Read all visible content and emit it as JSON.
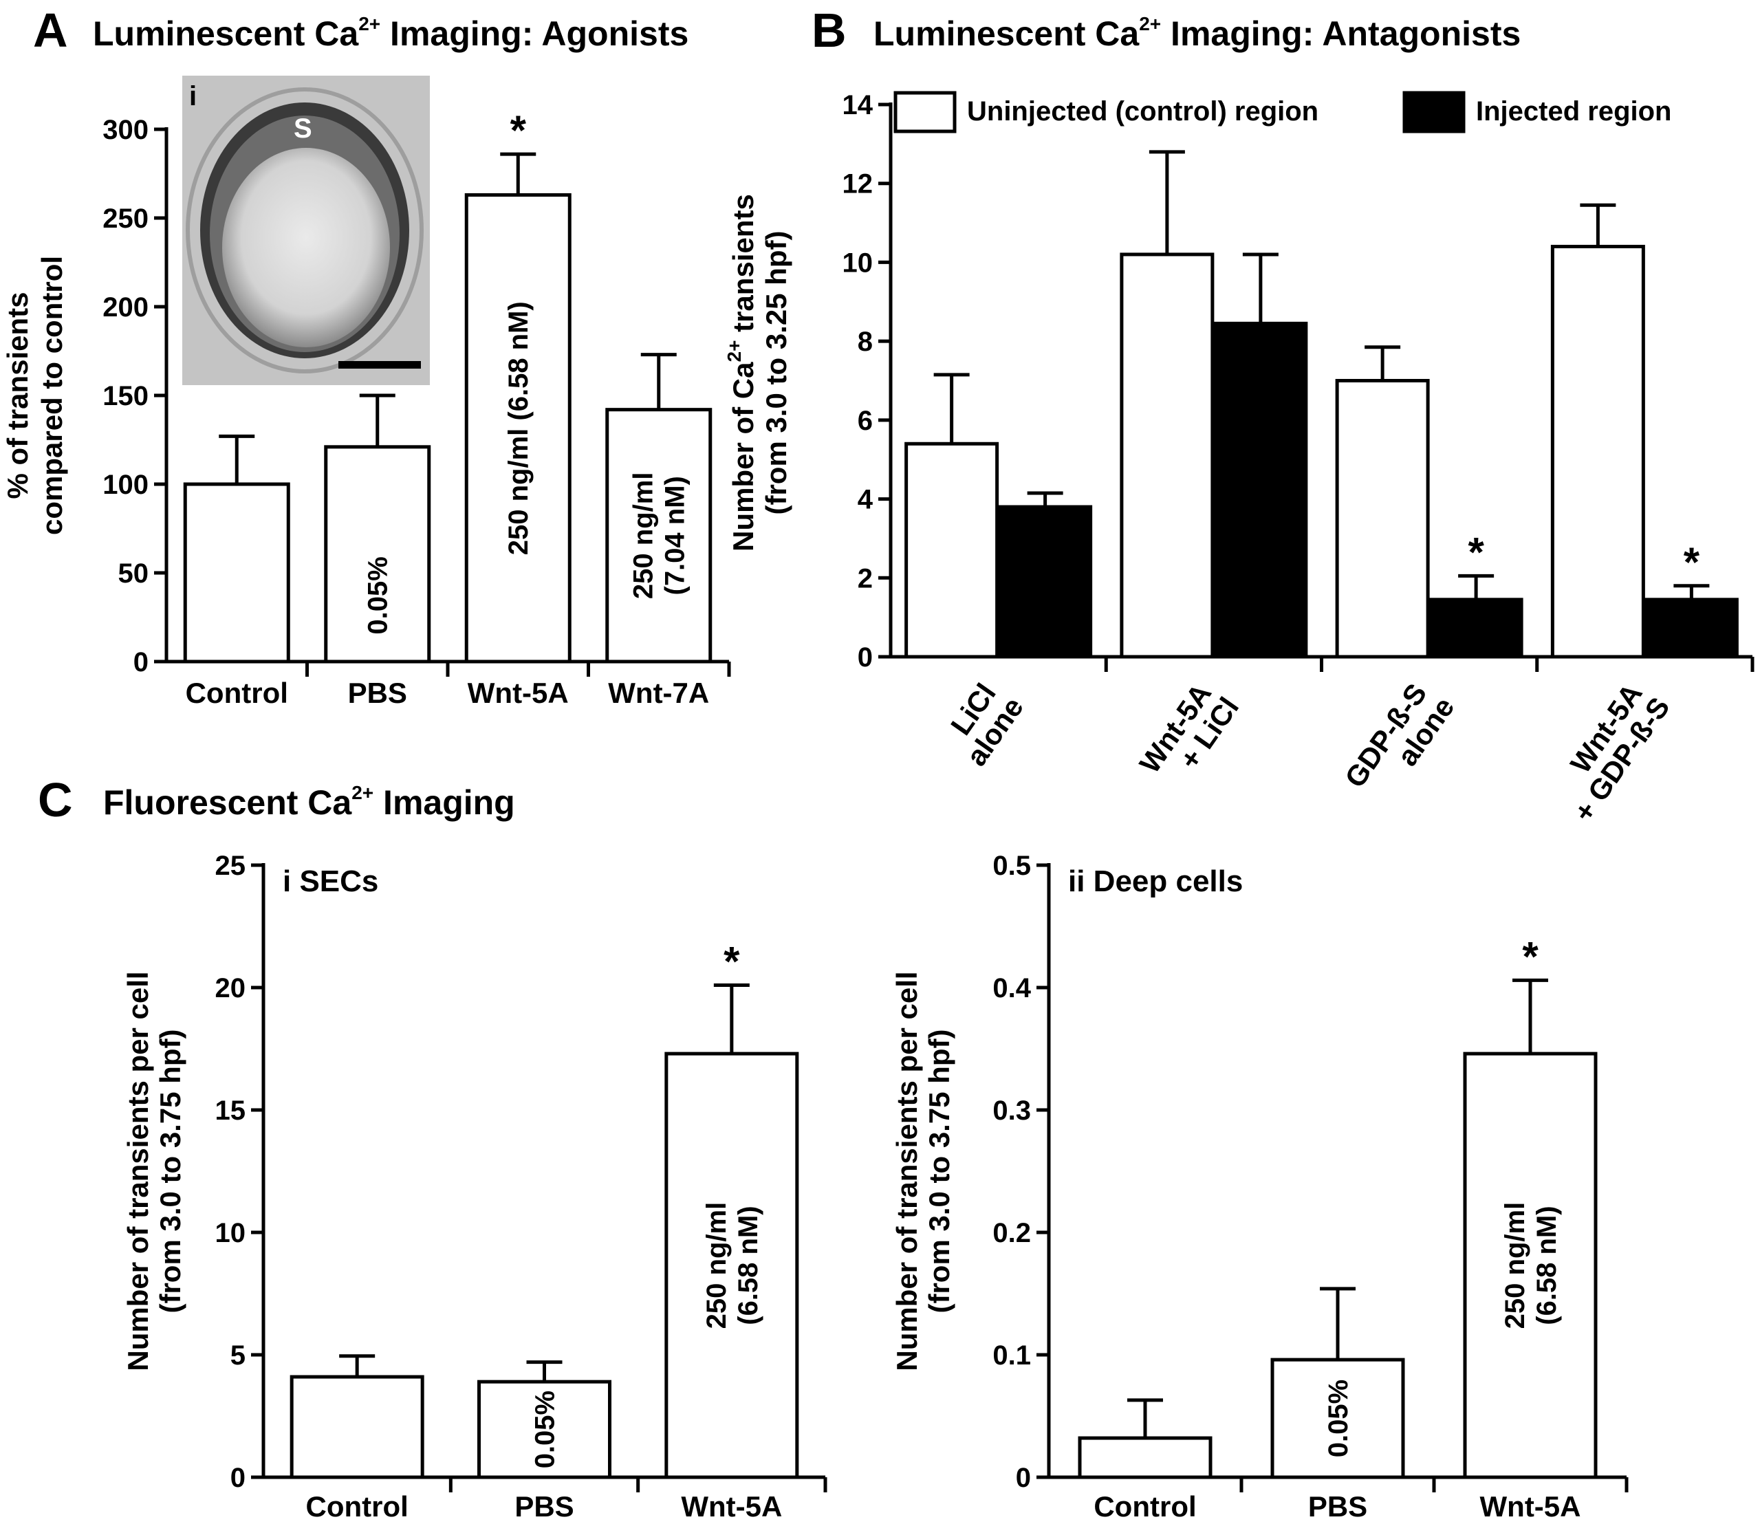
{
  "colors": {
    "uninjected": "#ffffff",
    "injected": "#000000",
    "axis": "#000000"
  },
  "panels": {
    "A": {
      "letter": "A",
      "title_pre": "Luminescent Ca",
      "title_sup": "2+",
      "title_post": " Imaging: Agonists",
      "inset_label": "i",
      "inset_s": "S"
    },
    "B": {
      "letter": "B",
      "title_pre": "Luminescent Ca",
      "title_sup": "2+",
      "title_post": " Imaging: Antagonists"
    },
    "C": {
      "letter": "C",
      "title_pre": "Fluorescent Ca",
      "title_sup": "2+",
      "title_post": " Imaging"
    }
  },
  "chart_data": [
    {
      "id": "A",
      "type": "bar",
      "categories": [
        "Control",
        "PBS",
        "Wnt-5A",
        "Wnt-7A"
      ],
      "values": [
        100,
        121,
        263,
        142
      ],
      "errors": [
        27,
        29,
        23,
        31
      ],
      "bar_labels": [
        [
          ""
        ],
        [
          "0.05%"
        ],
        [
          "250 ng/ml (6.58 nM)"
        ],
        [
          "250 ng/ml",
          "(7.04 nM)"
        ]
      ],
      "significant": [
        false,
        false,
        true,
        false
      ],
      "ylabel_lines": [
        "% of transients",
        "compared to control"
      ],
      "ylim": [
        0,
        300
      ],
      "yticks": [
        0,
        50,
        100,
        150,
        200,
        250,
        300
      ]
    },
    {
      "id": "B",
      "type": "bar",
      "categories": [
        [
          "LiCl",
          "alone"
        ],
        [
          "Wnt-5A",
          "+ LiCl"
        ],
        [
          "GDP-ß-S",
          "alone"
        ],
        [
          "Wnt-5A",
          "+ GDP-ß-S"
        ]
      ],
      "series": [
        {
          "name": "Uninjected (control) region",
          "values": [
            5.4,
            10.2,
            7.0,
            10.4
          ],
          "errors": [
            1.75,
            2.6,
            0.85,
            1.05
          ]
        },
        {
          "name": "Injected region",
          "values": [
            3.8,
            8.45,
            1.45,
            1.45
          ],
          "errors": [
            0.35,
            1.75,
            0.6,
            0.35
          ]
        }
      ],
      "significant": [
        [
          false,
          false
        ],
        [
          false,
          false
        ],
        [
          false,
          true
        ],
        [
          false,
          true
        ]
      ],
      "ylabel_lines": [
        "Number of Ca",
        "transients",
        "(from 3.0 to 3.25 hpf)"
      ],
      "ylabel_sup": "2+",
      "ylim": [
        0,
        14
      ],
      "yticks": [
        0,
        2,
        4,
        6,
        8,
        10,
        12,
        14
      ]
    },
    {
      "id": "Ci",
      "type": "bar",
      "subtitle": "i SECs",
      "categories": [
        "Control",
        "PBS",
        "Wnt-5A"
      ],
      "values": [
        4.1,
        3.9,
        17.3
      ],
      "errors": [
        0.85,
        0.8,
        2.8
      ],
      "bar_labels": [
        [
          ""
        ],
        [
          "0.05%"
        ],
        [
          "250 ng/ml",
          "(6.58 nM)"
        ]
      ],
      "significant": [
        false,
        false,
        true
      ],
      "ylabel_lines": [
        "Number of transients per cell",
        "(from 3.0 to 3.75 hpf)"
      ],
      "ylim": [
        0,
        25
      ],
      "yticks": [
        0,
        5,
        10,
        15,
        20,
        25
      ]
    },
    {
      "id": "Cii",
      "type": "bar",
      "subtitle": "ii Deep cells",
      "categories": [
        "Control",
        "PBS",
        "Wnt-5A"
      ],
      "values": [
        0.032,
        0.096,
        0.346
      ],
      "errors": [
        0.031,
        0.058,
        0.06
      ],
      "bar_labels": [
        [
          ""
        ],
        [
          "0.05%"
        ],
        [
          "250 ng/ml",
          "(6.58 nM)"
        ]
      ],
      "significant": [
        false,
        false,
        true
      ],
      "ylabel_lines": [
        "Number of transients per cell",
        "(from 3.0 to 3.75 hpf)"
      ],
      "ylim": [
        0,
        0.5
      ],
      "yticks": [
        0,
        0.1,
        0.2,
        0.3,
        0.4,
        0.5
      ]
    }
  ]
}
